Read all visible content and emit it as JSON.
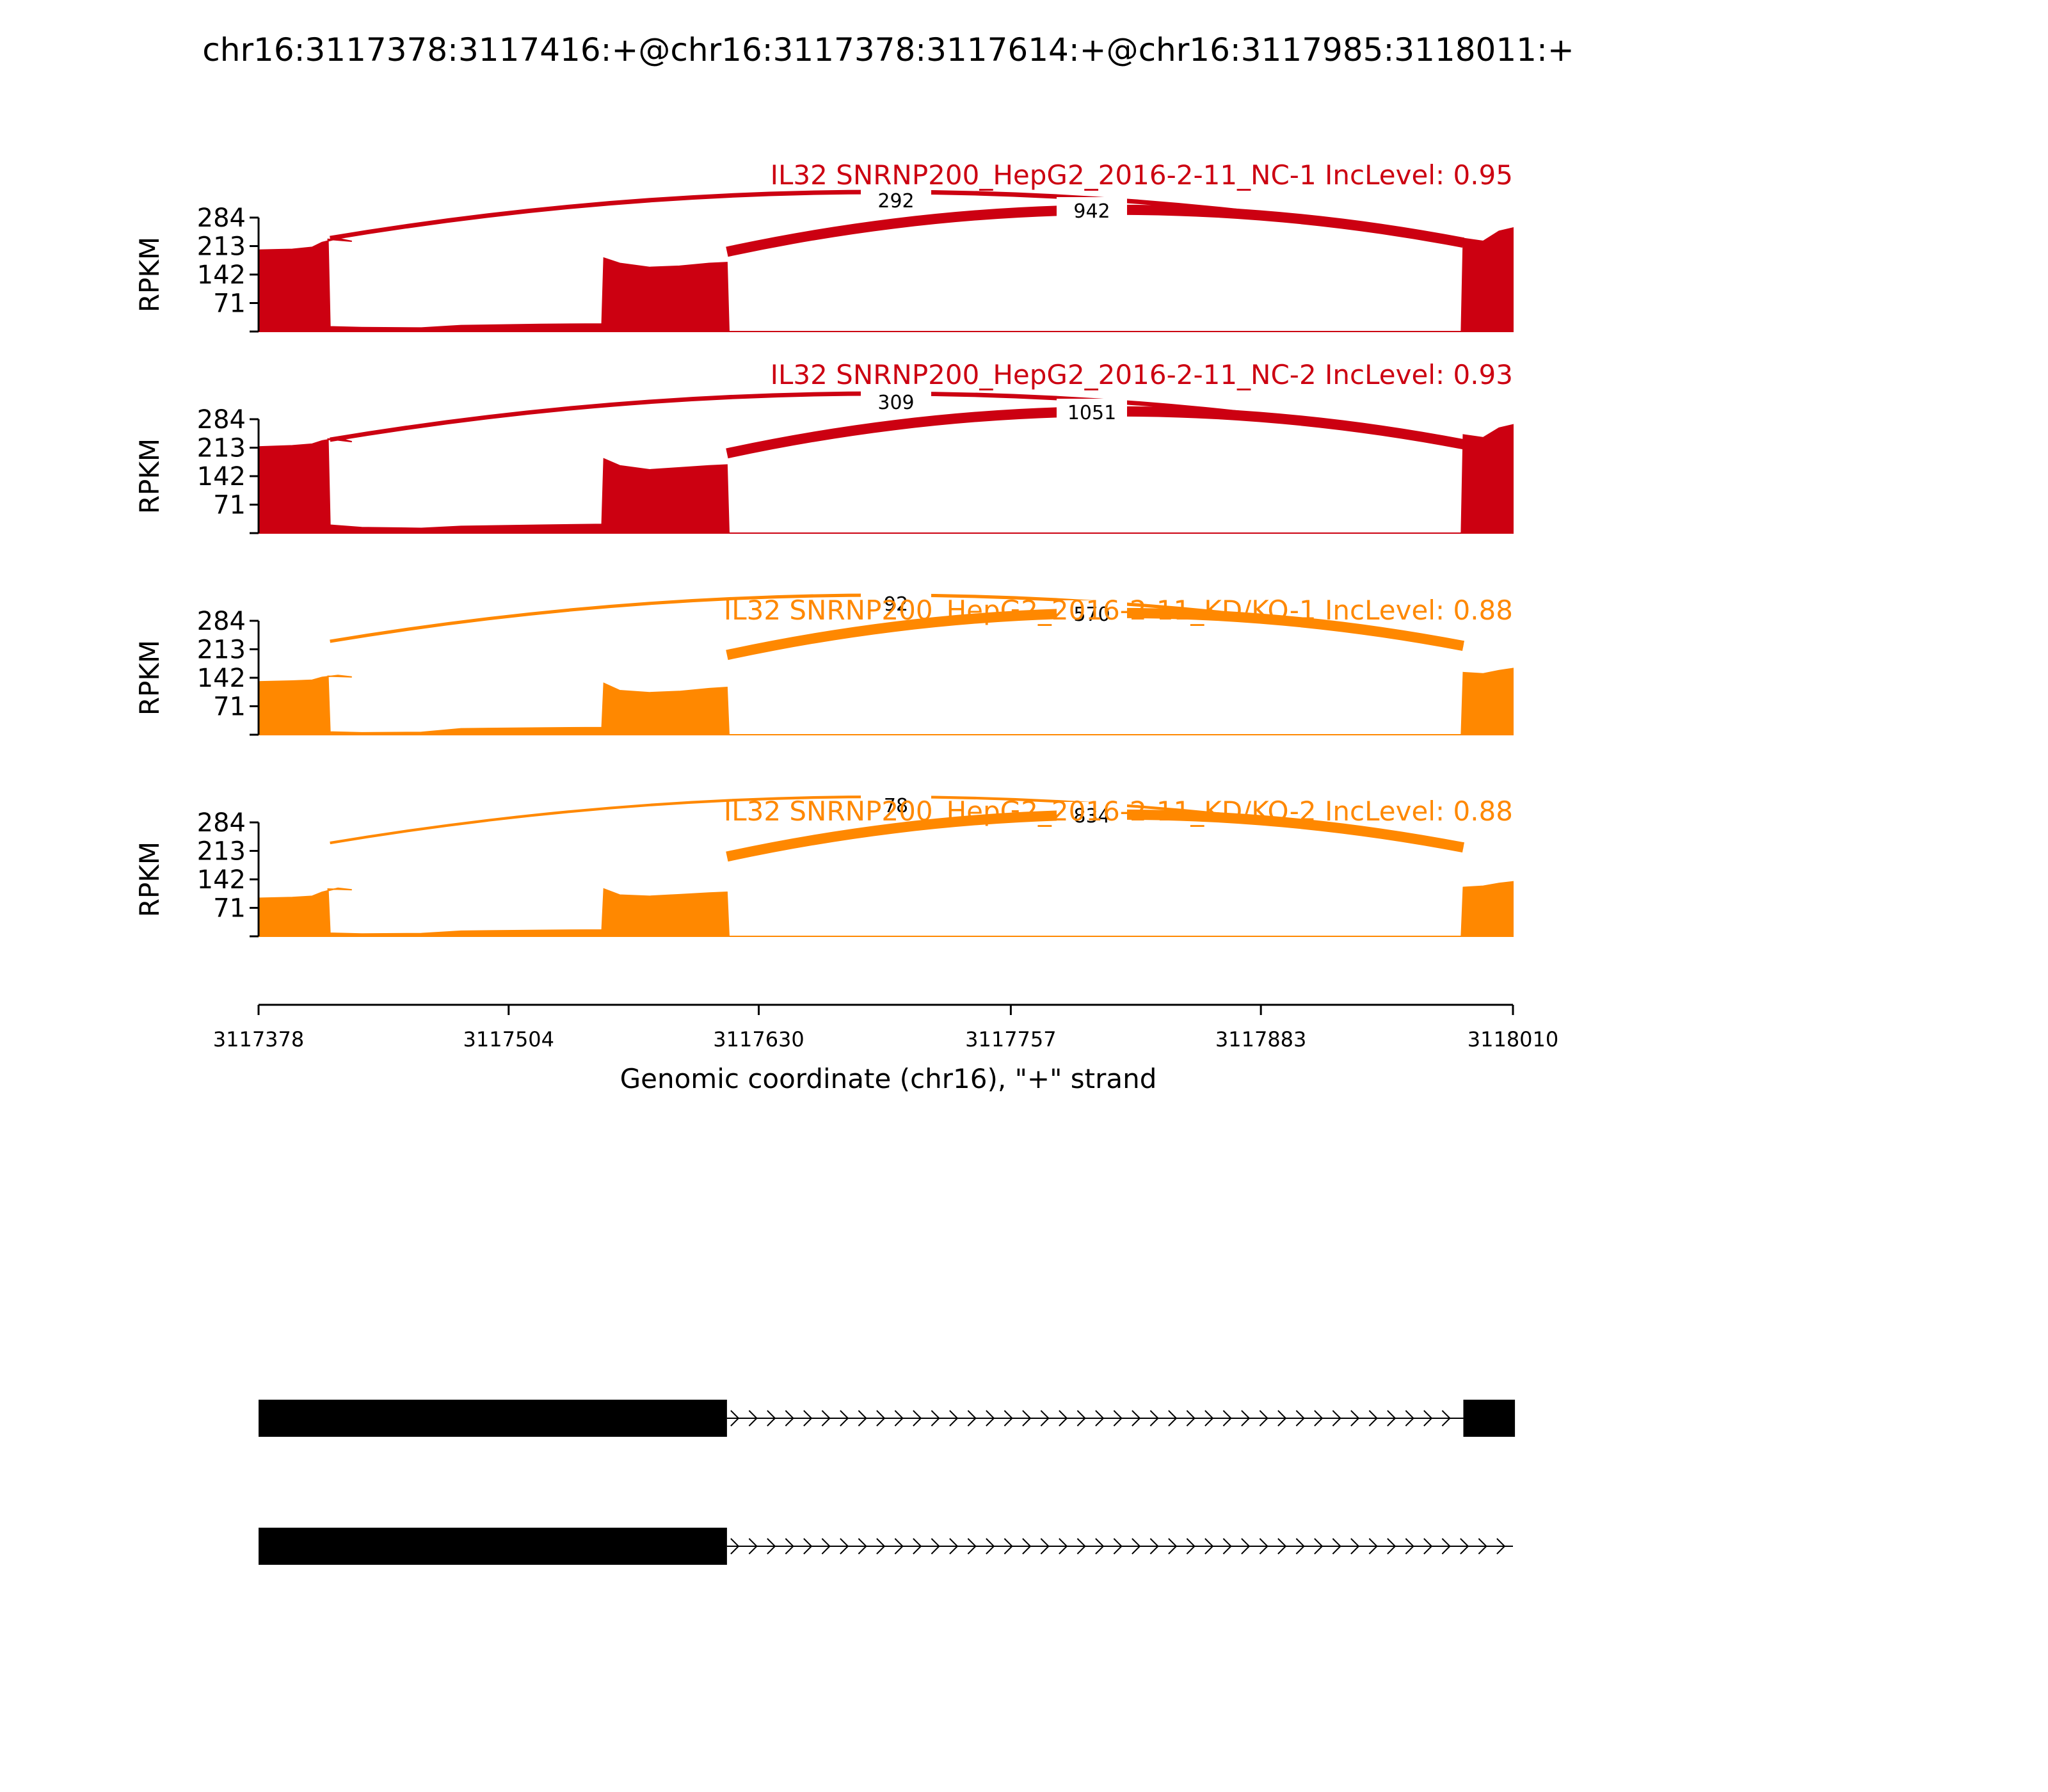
{
  "chart_data": {
    "type": "area",
    "title": "chr16:3117378:3117416:+@chr16:3117378:3117614:+@chr16:3117985:3118011:+",
    "ylabel": "RPKM",
    "xlabel": "Genomic coordinate (chr16), \"+\" strand",
    "xlim": [
      3117378,
      3118010
    ],
    "ylim": [
      0,
      284
    ],
    "yticks": [
      71,
      142,
      213,
      284
    ],
    "xticks": [
      3117378,
      3117504,
      3117630,
      3117757,
      3117883,
      3118010
    ],
    "colors": {
      "nc": "#cc0011",
      "kd": "#ff8800"
    },
    "exons": [
      [
        3117378,
        3117614
      ],
      [
        3117985,
        3118011
      ]
    ],
    "panels": [
      {
        "title": "IL32 SNRNP200_HepG2_2016-2-11_NC-1 IncLevel: 0.95",
        "color": "#cc0011",
        "coverage": [
          [
            3117378,
            203
          ],
          [
            3117395,
            205
          ],
          [
            3117405,
            210
          ],
          [
            3117410,
            222
          ],
          [
            3117418,
            232
          ],
          [
            3117425,
            225
          ],
          [
            3117413,
            230
          ],
          [
            3117414,
            12
          ],
          [
            3117430,
            10
          ],
          [
            3117460,
            9
          ],
          [
            3117480,
            15
          ],
          [
            3117520,
            18
          ],
          [
            3117551,
            19
          ],
          [
            3117552,
            183
          ],
          [
            3117560,
            170
          ],
          [
            3117575,
            160
          ],
          [
            3117590,
            163
          ],
          [
            3117605,
            170
          ],
          [
            3117614,
            172
          ],
          [
            3117615,
            0
          ],
          [
            3117984,
            0
          ],
          [
            3117985,
            232
          ],
          [
            3117995,
            225
          ],
          [
            3118003,
            250
          ],
          [
            3118010,
            258
          ]
        ],
        "junctions": [
          {
            "start": 3117414,
            "end": 3117985,
            "count": "292"
          },
          {
            "start": 3117614,
            "end": 3117985,
            "count": "942"
          }
        ]
      },
      {
        "title": "IL32 SNRNP200_HepG2_2016-2-11_NC-2 IncLevel: 0.93",
        "color": "#cc0011",
        "coverage": [
          [
            3117378,
            215
          ],
          [
            3117395,
            218
          ],
          [
            3117405,
            222
          ],
          [
            3117410,
            230
          ],
          [
            3117418,
            237
          ],
          [
            3117425,
            228
          ],
          [
            3117413,
            235
          ],
          [
            3117414,
            20
          ],
          [
            3117430,
            14
          ],
          [
            3117460,
            12
          ],
          [
            3117480,
            17
          ],
          [
            3117520,
            20
          ],
          [
            3117551,
            22
          ],
          [
            3117552,
            185
          ],
          [
            3117560,
            168
          ],
          [
            3117575,
            158
          ],
          [
            3117590,
            163
          ],
          [
            3117605,
            168
          ],
          [
            3117614,
            170
          ],
          [
            3117615,
            0
          ],
          [
            3117984,
            0
          ],
          [
            3117985,
            245
          ],
          [
            3117995,
            238
          ],
          [
            3118003,
            262
          ],
          [
            3118010,
            270
          ]
        ],
        "junctions": [
          {
            "start": 3117414,
            "end": 3117985,
            "count": "309"
          },
          {
            "start": 3117614,
            "end": 3117985,
            "count": "1051"
          }
        ]
      },
      {
        "title": "IL32 SNRNP200_HepG2_2016-2-11_KD/KO-1 IncLevel: 0.88",
        "color": "#ff8800",
        "coverage": [
          [
            3117378,
            132
          ],
          [
            3117395,
            134
          ],
          [
            3117405,
            136
          ],
          [
            3117410,
            143
          ],
          [
            3117418,
            148
          ],
          [
            3117425,
            144
          ],
          [
            3117413,
            146
          ],
          [
            3117414,
            7
          ],
          [
            3117430,
            5
          ],
          [
            3117460,
            6
          ],
          [
            3117480,
            15
          ],
          [
            3117520,
            17
          ],
          [
            3117551,
            18
          ],
          [
            3117552,
            128
          ],
          [
            3117560,
            110
          ],
          [
            3117575,
            105
          ],
          [
            3117590,
            108
          ],
          [
            3117605,
            115
          ],
          [
            3117614,
            118
          ],
          [
            3117615,
            0
          ],
          [
            3117984,
            0
          ],
          [
            3117985,
            155
          ],
          [
            3117995,
            152
          ],
          [
            3118003,
            160
          ],
          [
            3118010,
            165
          ]
        ],
        "junctions": [
          {
            "start": 3117414,
            "end": 3117985,
            "count": "92"
          },
          {
            "start": 3117614,
            "end": 3117985,
            "count": "570"
          }
        ]
      },
      {
        "title": "IL32 SNRNP200_HepG2_2016-2-11_KD/KO-2 IncLevel: 0.88",
        "color": "#ff8800",
        "coverage": [
          [
            3117378,
            95
          ],
          [
            3117395,
            97
          ],
          [
            3117405,
            100
          ],
          [
            3117410,
            110
          ],
          [
            3117418,
            120
          ],
          [
            3117425,
            116
          ],
          [
            3117413,
            118
          ],
          [
            3117414,
            8
          ],
          [
            3117430,
            6
          ],
          [
            3117460,
            7
          ],
          [
            3117480,
            13
          ],
          [
            3117520,
            15
          ],
          [
            3117551,
            16
          ],
          [
            3117552,
            118
          ],
          [
            3117560,
            103
          ],
          [
            3117575,
            100
          ],
          [
            3117590,
            104
          ],
          [
            3117605,
            108
          ],
          [
            3117614,
            110
          ],
          [
            3117615,
            0
          ],
          [
            3117984,
            0
          ],
          [
            3117985,
            122
          ],
          [
            3117995,
            125
          ],
          [
            3118003,
            132
          ],
          [
            3118010,
            136
          ]
        ],
        "junctions": [
          {
            "start": 3117414,
            "end": 3117985,
            "count": "78"
          },
          {
            "start": 3117614,
            "end": 3117985,
            "count": "834"
          }
        ]
      }
    ],
    "isoforms": [
      {
        "exons": [
          [
            3117378,
            3117614
          ],
          [
            3117985,
            3118011
          ]
        ],
        "intron": [
          3117614,
          3117985
        ]
      },
      {
        "exons": [
          [
            3117378,
            3117614
          ]
        ],
        "intron": [
          3117614,
          3118010
        ]
      }
    ]
  }
}
